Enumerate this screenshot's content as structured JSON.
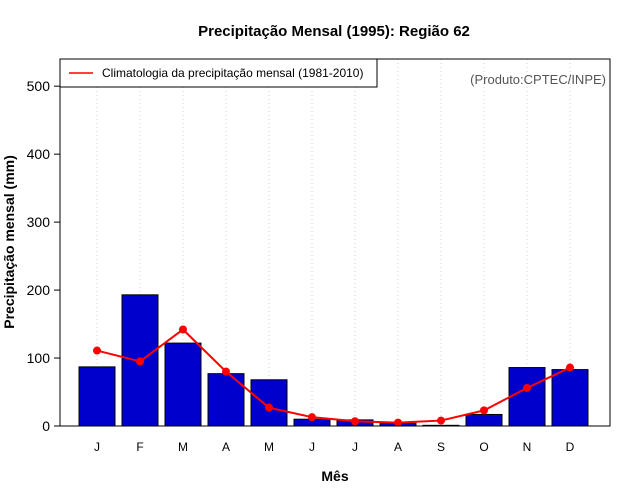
{
  "chart_data": {
    "type": "bar",
    "title": "Precipitação Mensal (1995): Região 62",
    "xlabel": "Mês",
    "ylabel": "Precipitação mensal (mm)",
    "categories": [
      "J",
      "F",
      "M",
      "A",
      "M",
      "J",
      "J",
      "A",
      "S",
      "O",
      "N",
      "D"
    ],
    "ylim": [
      0,
      540
    ],
    "yticks": [
      0,
      100,
      200,
      300,
      400,
      500
    ],
    "grid": "vertical-dotted",
    "series": [
      {
        "name": "Precipitação mensal (1995)",
        "kind": "bar",
        "color": "#0000cd",
        "values": [
          87,
          193,
          122,
          77,
          68,
          10,
          9,
          4,
          1,
          17,
          86,
          83
        ]
      },
      {
        "name": "Climatologia da precipitação mensal (1981-2010)",
        "kind": "line",
        "color": "#ff0000",
        "values": [
          111,
          95,
          142,
          80,
          27,
          13,
          7,
          5,
          8,
          23,
          56,
          86
        ]
      }
    ],
    "legend": {
      "position": "top-left",
      "entries": [
        "Climatologia da precipitação mensal (1981-2010)"
      ]
    },
    "annotation": "(Produto:CPTEC/INPE)"
  }
}
